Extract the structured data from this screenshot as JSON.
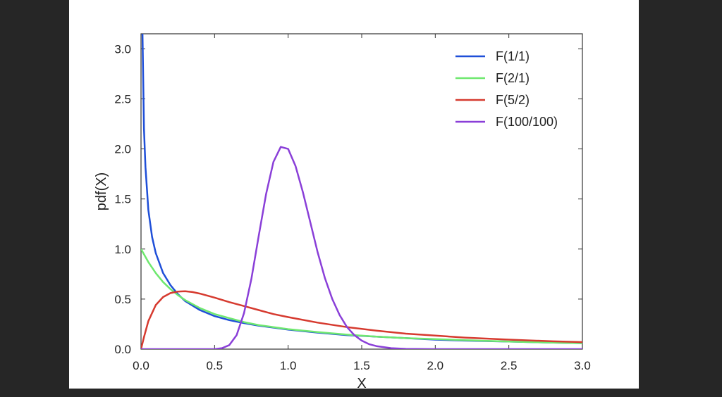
{
  "chart_data": {
    "type": "line",
    "title": "",
    "xlabel": "X",
    "ylabel": "pdf(X)",
    "xlim": [
      0.0,
      3.0
    ],
    "ylim": [
      0.0,
      3.15
    ],
    "x_ticks": [
      "0.0",
      "0.5",
      "1.0",
      "1.5",
      "2.0",
      "2.5",
      "3.0"
    ],
    "y_ticks": [
      "0.0",
      "0.5",
      "1.0",
      "1.5",
      "2.0",
      "2.5",
      "3.0"
    ],
    "grid": false,
    "legend_position": "top-right",
    "series": [
      {
        "name": "F(1/1)",
        "color": "#1f4fd8",
        "points": [
          [
            0.01,
            3.15
          ],
          [
            0.02,
            2.2
          ],
          [
            0.03,
            1.82
          ],
          [
            0.05,
            1.39
          ],
          [
            0.075,
            1.12
          ],
          [
            0.1,
            0.96
          ],
          [
            0.15,
            0.76
          ],
          [
            0.2,
            0.64
          ],
          [
            0.25,
            0.55
          ],
          [
            0.3,
            0.48
          ],
          [
            0.4,
            0.39
          ],
          [
            0.5,
            0.33
          ],
          [
            0.6,
            0.29
          ],
          [
            0.7,
            0.26
          ],
          [
            0.8,
            0.235
          ],
          [
            0.9,
            0.215
          ],
          [
            1.0,
            0.195
          ],
          [
            1.2,
            0.165
          ],
          [
            1.4,
            0.14
          ],
          [
            1.6,
            0.125
          ],
          [
            1.8,
            0.11
          ],
          [
            2.0,
            0.095
          ],
          [
            2.2,
            0.085
          ],
          [
            2.5,
            0.075
          ],
          [
            2.8,
            0.065
          ],
          [
            3.0,
            0.06
          ]
        ]
      },
      {
        "name": "F(2/1)",
        "color": "#6fe86f",
        "points": [
          [
            0.0,
            1.0
          ],
          [
            0.05,
            0.87
          ],
          [
            0.1,
            0.76
          ],
          [
            0.15,
            0.67
          ],
          [
            0.2,
            0.6
          ],
          [
            0.25,
            0.54
          ],
          [
            0.3,
            0.49
          ],
          [
            0.4,
            0.41
          ],
          [
            0.5,
            0.35
          ],
          [
            0.6,
            0.31
          ],
          [
            0.7,
            0.27
          ],
          [
            0.8,
            0.24
          ],
          [
            0.9,
            0.22
          ],
          [
            1.0,
            0.2
          ],
          [
            1.2,
            0.17
          ],
          [
            1.4,
            0.145
          ],
          [
            1.6,
            0.125
          ],
          [
            1.8,
            0.11
          ],
          [
            2.0,
            0.1
          ],
          [
            2.2,
            0.09
          ],
          [
            2.5,
            0.075
          ],
          [
            2.8,
            0.065
          ],
          [
            3.0,
            0.06
          ]
        ]
      },
      {
        "name": "F(5/2)",
        "color": "#d63a2f",
        "points": [
          [
            0.0,
            0.0
          ],
          [
            0.02,
            0.12
          ],
          [
            0.05,
            0.28
          ],
          [
            0.1,
            0.44
          ],
          [
            0.15,
            0.52
          ],
          [
            0.2,
            0.56
          ],
          [
            0.25,
            0.575
          ],
          [
            0.3,
            0.578
          ],
          [
            0.35,
            0.57
          ],
          [
            0.4,
            0.555
          ],
          [
            0.5,
            0.515
          ],
          [
            0.6,
            0.47
          ],
          [
            0.7,
            0.43
          ],
          [
            0.8,
            0.39
          ],
          [
            0.9,
            0.35
          ],
          [
            1.0,
            0.32
          ],
          [
            1.2,
            0.265
          ],
          [
            1.4,
            0.22
          ],
          [
            1.6,
            0.185
          ],
          [
            1.8,
            0.155
          ],
          [
            2.0,
            0.135
          ],
          [
            2.2,
            0.115
          ],
          [
            2.5,
            0.095
          ],
          [
            2.8,
            0.078
          ],
          [
            3.0,
            0.07
          ]
        ]
      },
      {
        "name": "F(100/100)",
        "color": "#8a3fd8",
        "points": [
          [
            0.0,
            0.0
          ],
          [
            0.4,
            0.0
          ],
          [
            0.5,
            0.0
          ],
          [
            0.55,
            0.01
          ],
          [
            0.6,
            0.04
          ],
          [
            0.65,
            0.14
          ],
          [
            0.7,
            0.36
          ],
          [
            0.75,
            0.7
          ],
          [
            0.8,
            1.13
          ],
          [
            0.85,
            1.55
          ],
          [
            0.9,
            1.87
          ],
          [
            0.95,
            2.02
          ],
          [
            1.0,
            2.0
          ],
          [
            1.05,
            1.83
          ],
          [
            1.1,
            1.57
          ],
          [
            1.15,
            1.27
          ],
          [
            1.2,
            0.97
          ],
          [
            1.25,
            0.71
          ],
          [
            1.3,
            0.5
          ],
          [
            1.35,
            0.34
          ],
          [
            1.4,
            0.22
          ],
          [
            1.45,
            0.14
          ],
          [
            1.5,
            0.085
          ],
          [
            1.55,
            0.05
          ],
          [
            1.6,
            0.03
          ],
          [
            1.7,
            0.01
          ],
          [
            1.8,
            0.003
          ],
          [
            2.0,
            0.0
          ],
          [
            3.0,
            0.0
          ]
        ]
      }
    ]
  }
}
